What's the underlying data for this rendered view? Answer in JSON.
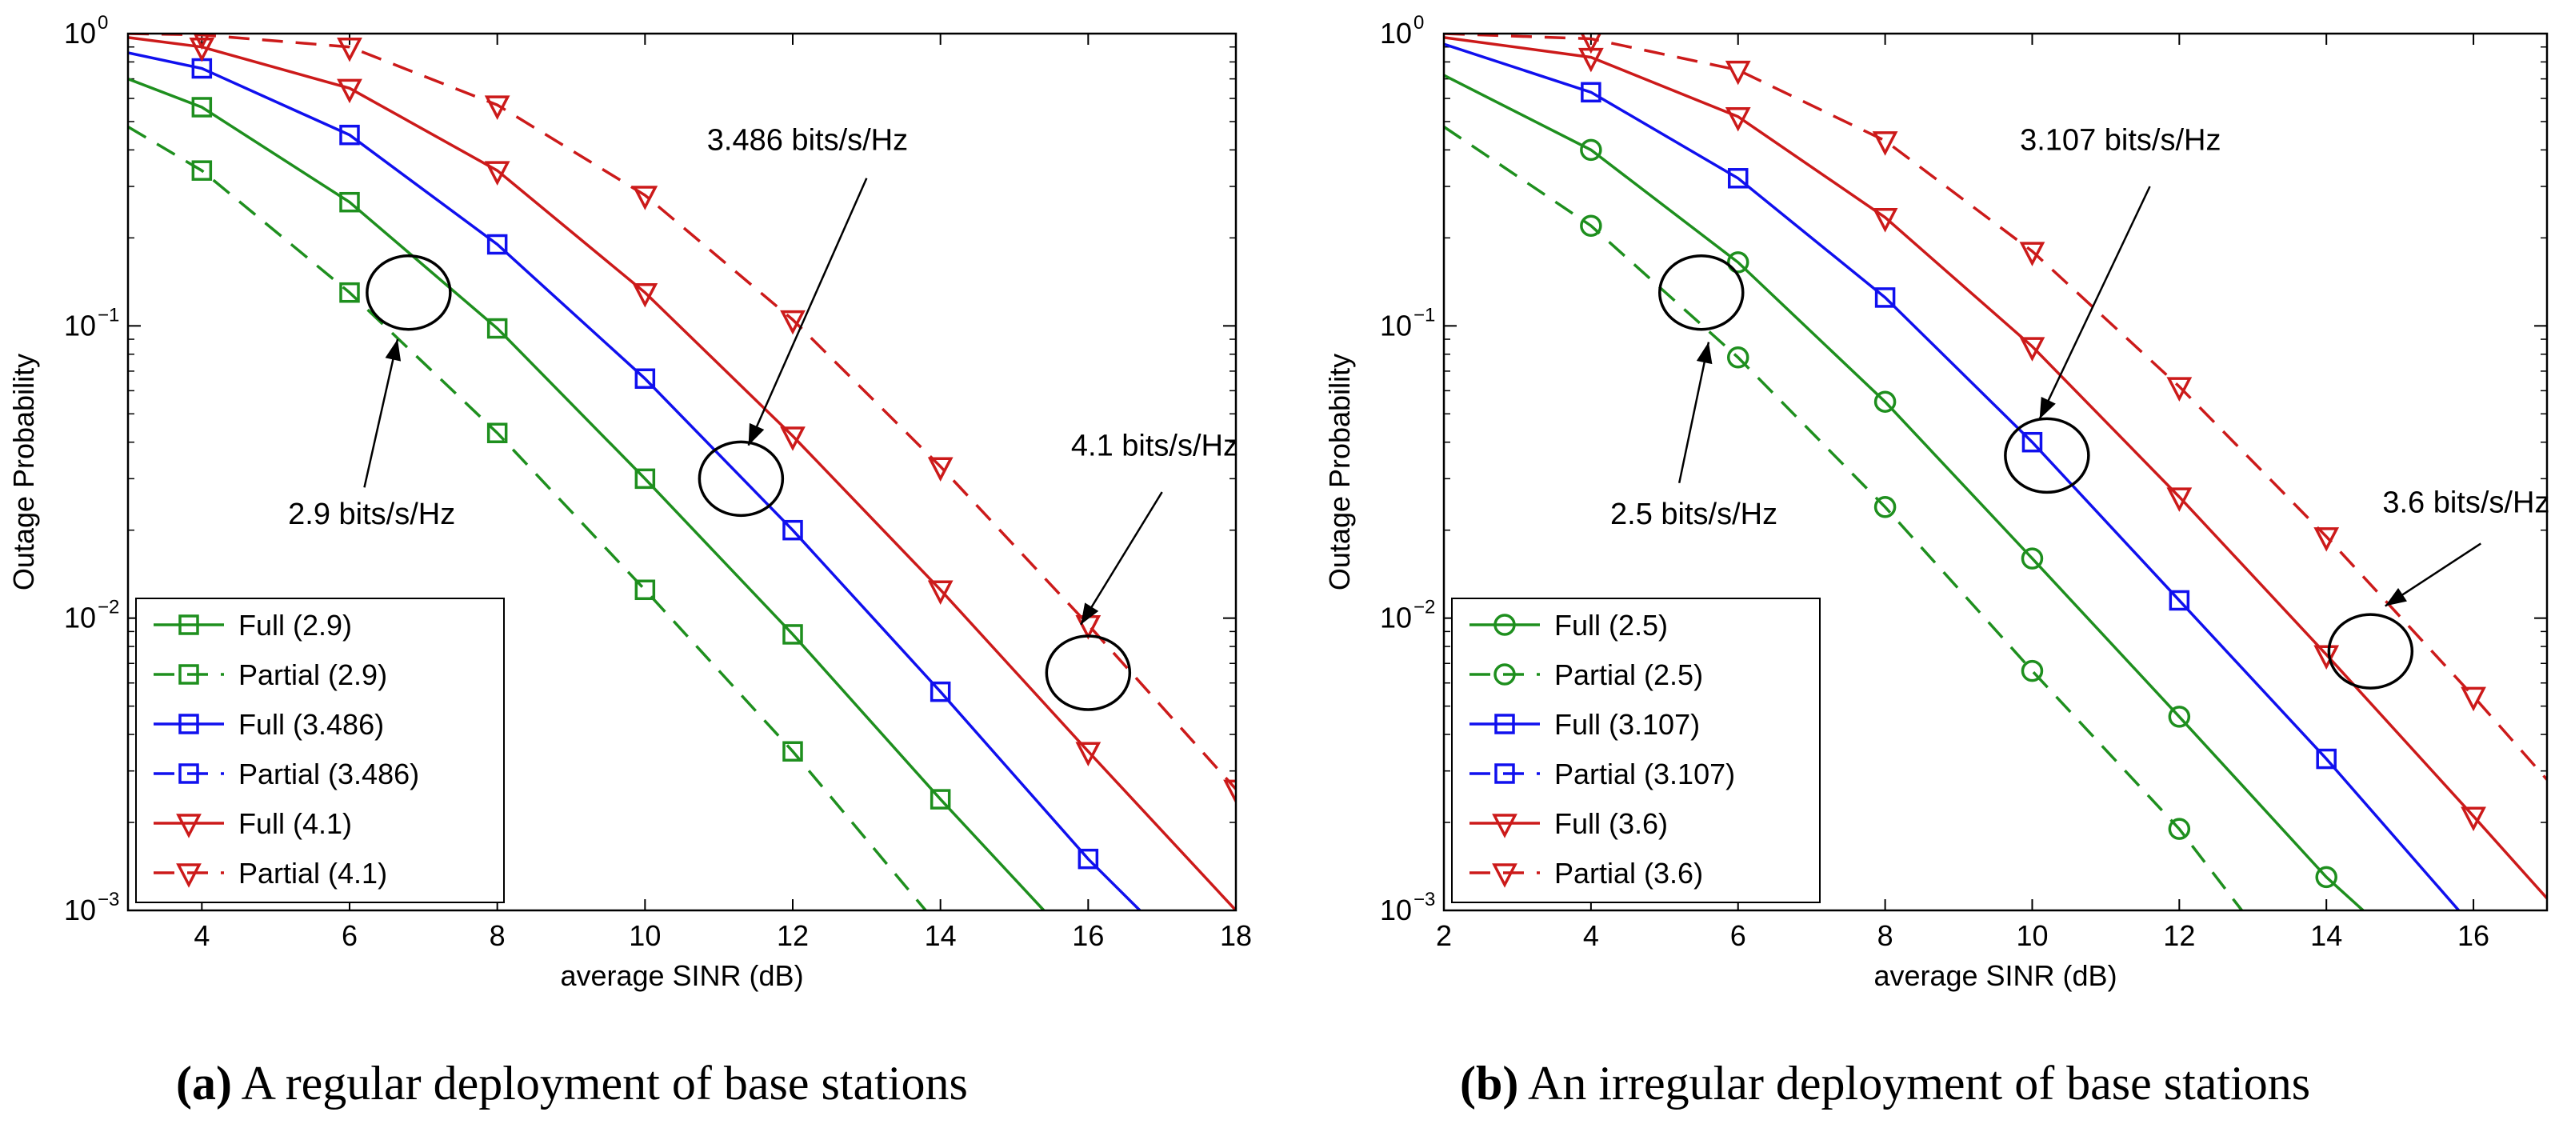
{
  "colors": {
    "green": "#1e8f1e",
    "blue": "#1010ee",
    "red": "#cc1a1a",
    "black": "#000000"
  },
  "captions": [
    {
      "tag": "a",
      "text": "A regular deployment of base stations"
    },
    {
      "tag": "b",
      "text": "An irregular deployment of base stations"
    }
  ],
  "chart_data": [
    {
      "type": "line",
      "id": "a",
      "xlabel": "average SINR (dB)",
      "ylabel": "Outage Probability",
      "yscale": "log",
      "xlim": [
        3,
        18
      ],
      "ylim": [
        0.001,
        1
      ],
      "xticks": [
        4,
        6,
        8,
        10,
        12,
        14,
        16,
        18
      ],
      "legend_position": "bottom-left",
      "series": [
        {
          "name": "Full (2.9)",
          "color": "green",
          "dash": false,
          "marker": "square",
          "x": [
            3,
            4,
            6,
            8,
            10,
            12,
            14,
            15.4
          ],
          "y": [
            0.7,
            0.56,
            0.265,
            0.098,
            0.03,
            0.0088,
            0.0024,
            0.001
          ],
          "mx": [
            4,
            6,
            8,
            10,
            12,
            14
          ]
        },
        {
          "name": "Partial (2.9)",
          "color": "green",
          "dash": true,
          "marker": "square",
          "x": [
            3,
            4,
            6,
            8,
            10,
            12,
            13.8
          ],
          "y": [
            0.48,
            0.34,
            0.13,
            0.043,
            0.0125,
            0.0035,
            0.001
          ],
          "mx": [
            4,
            6,
            8,
            10,
            12
          ]
        },
        {
          "name": "Full (3.486)",
          "color": "blue",
          "dash": false,
          "marker": "square",
          "x": [
            3,
            4,
            6,
            8,
            10,
            12,
            14,
            16,
            16.7
          ],
          "y": [
            0.86,
            0.76,
            0.45,
            0.19,
            0.066,
            0.02,
            0.0056,
            0.0015,
            0.001
          ],
          "mx": [
            4,
            6,
            8,
            10,
            12,
            14,
            16
          ]
        },
        {
          "name": "Partial (3.486)",
          "color": "blue",
          "dash": true,
          "marker": "square",
          "x": [],
          "y": [],
          "mx": []
        },
        {
          "name": "Full (4.1)",
          "color": "red",
          "dash": false,
          "marker": "triangle-down",
          "x": [
            3,
            4,
            6,
            8,
            10,
            12,
            14,
            16,
            18
          ],
          "y": [
            0.97,
            0.9,
            0.65,
            0.34,
            0.13,
            0.042,
            0.0125,
            0.0035,
            0.001
          ],
          "mx": [
            4,
            6,
            8,
            10,
            12,
            14,
            16
          ]
        },
        {
          "name": "Partial (4.1)",
          "color": "red",
          "dash": true,
          "marker": "triangle-down",
          "x": [
            3,
            4,
            6,
            8,
            10,
            12,
            14,
            16,
            18
          ],
          "y": [
            1.0,
            0.99,
            0.9,
            0.57,
            0.28,
            0.105,
            0.033,
            0.0095,
            0.0026
          ],
          "mx": [
            4,
            6,
            8,
            10,
            12,
            14,
            16,
            18
          ]
        }
      ],
      "annotations": [
        {
          "text": "2.9 bits/s/Hz",
          "ellipse": {
            "x": 6.8,
            "y": 0.13
          },
          "label": {
            "x": 6.3,
            "y": 0.021
          },
          "arrow_from": {
            "x": 6.2,
            "y": 0.028
          },
          "arrow_to": {
            "x": 6.65,
            "y": 0.09
          }
        },
        {
          "text": "3.486 bits/s/Hz",
          "ellipse": {
            "x": 11.3,
            "y": 0.03
          },
          "label": {
            "x": 12.2,
            "y": 0.4
          },
          "arrow_from": {
            "x": 13.0,
            "y": 0.32
          },
          "arrow_to": {
            "x": 11.4,
            "y": 0.039
          }
        },
        {
          "text": "4.1 bits/s/Hz",
          "ellipse": {
            "x": 16.0,
            "y": 0.0065
          },
          "label": {
            "x": 16.9,
            "y": 0.036
          },
          "arrow_from": {
            "x": 17.0,
            "y": 0.027
          },
          "arrow_to": {
            "x": 15.9,
            "y": 0.0095
          }
        }
      ]
    },
    {
      "type": "line",
      "id": "b",
      "xlabel": "average SINR (dB)",
      "ylabel": "Outage Probability",
      "yscale": "log",
      "xlim": [
        2,
        17
      ],
      "ylim": [
        0.001,
        1
      ],
      "xticks": [
        2,
        4,
        6,
        8,
        10,
        12,
        14,
        16
      ],
      "legend_position": "bottom-left",
      "series": [
        {
          "name": "Full (2.5)",
          "color": "green",
          "dash": false,
          "marker": "circle",
          "x": [
            2,
            4,
            6,
            8,
            10,
            12,
            14,
            14.5
          ],
          "y": [
            0.72,
            0.4,
            0.165,
            0.055,
            0.016,
            0.0046,
            0.0013,
            0.001
          ],
          "mx": [
            4,
            6,
            8,
            10,
            12,
            14
          ]
        },
        {
          "name": "Partial (2.5)",
          "color": "green",
          "dash": true,
          "marker": "circle",
          "x": [
            2,
            4,
            6,
            8,
            10,
            12,
            12.85
          ],
          "y": [
            0.48,
            0.22,
            0.078,
            0.024,
            0.0066,
            0.0019,
            0.001
          ],
          "mx": [
            4,
            6,
            8,
            10,
            12
          ]
        },
        {
          "name": "Full (3.107)",
          "color": "blue",
          "dash": false,
          "marker": "square",
          "x": [
            2,
            4,
            6,
            8,
            10,
            12,
            14,
            15.8
          ],
          "y": [
            0.92,
            0.63,
            0.32,
            0.125,
            0.04,
            0.0115,
            0.0033,
            0.001
          ],
          "mx": [
            4,
            6,
            8,
            10,
            12,
            14
          ]
        },
        {
          "name": "Partial (3.107)",
          "color": "blue",
          "dash": true,
          "marker": "square",
          "x": [],
          "y": [],
          "mx": []
        },
        {
          "name": "Full (3.6)",
          "color": "red",
          "dash": false,
          "marker": "triangle-down",
          "x": [
            2,
            4,
            6,
            8,
            10,
            12,
            14,
            16,
            17
          ],
          "y": [
            0.97,
            0.83,
            0.52,
            0.235,
            0.085,
            0.026,
            0.0075,
            0.0021,
            0.0011
          ],
          "mx": [
            4,
            6,
            8,
            10,
            12,
            14,
            16
          ]
        },
        {
          "name": "Partial (3.6)",
          "color": "red",
          "dash": true,
          "marker": "triangle-down",
          "x": [
            2,
            4,
            6,
            8,
            10,
            12,
            14,
            16,
            17
          ],
          "y": [
            1.0,
            0.96,
            0.75,
            0.43,
            0.18,
            0.062,
            0.019,
            0.0054,
            0.0028
          ],
          "mx": [
            4,
            6,
            8,
            10,
            12,
            14,
            16
          ]
        }
      ],
      "annotations": [
        {
          "text": "2.5 bits/s/Hz",
          "ellipse": {
            "x": 5.5,
            "y": 0.13
          },
          "label": {
            "x": 5.4,
            "y": 0.021
          },
          "arrow_from": {
            "x": 5.2,
            "y": 0.029
          },
          "arrow_to": {
            "x": 5.6,
            "y": 0.088
          }
        },
        {
          "text": "3.107 bits/s/Hz",
          "ellipse": {
            "x": 10.2,
            "y": 0.036
          },
          "label": {
            "x": 11.2,
            "y": 0.4
          },
          "arrow_from": {
            "x": 11.6,
            "y": 0.3
          },
          "arrow_to": {
            "x": 10.1,
            "y": 0.048
          }
        },
        {
          "text": "3.6 bits/s/Hz",
          "ellipse": {
            "x": 14.6,
            "y": 0.0077
          },
          "label": {
            "x": 15.9,
            "y": 0.023
          },
          "arrow_from": {
            "x": 16.1,
            "y": 0.018
          },
          "arrow_to": {
            "x": 14.8,
            "y": 0.011
          }
        }
      ]
    }
  ]
}
